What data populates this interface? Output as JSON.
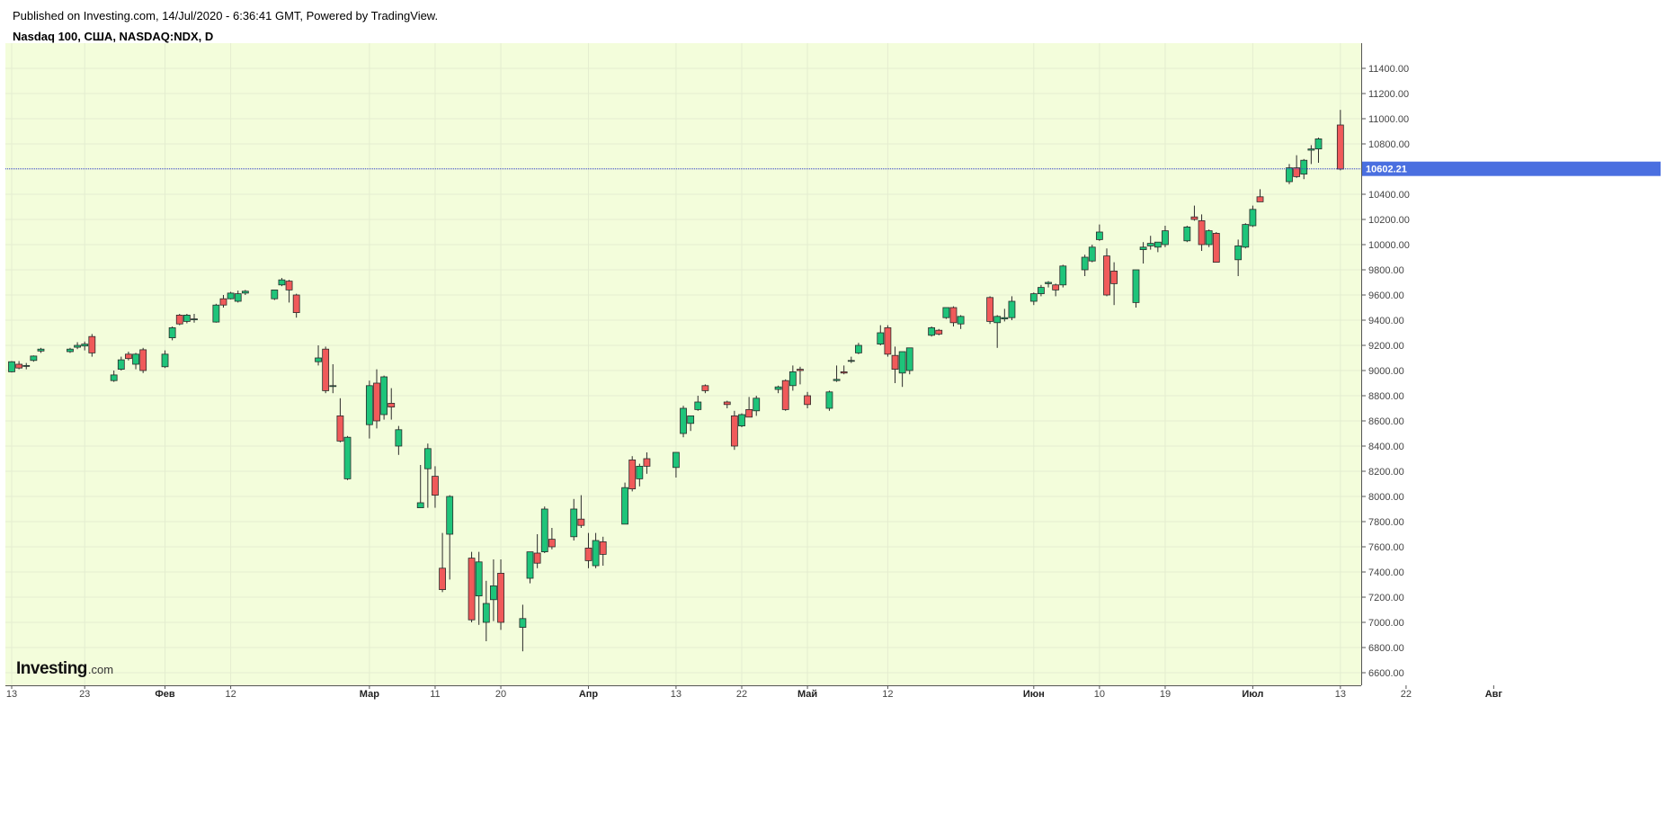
{
  "header": {
    "published": "Published on Investing.com, 14/Jul/2020 - 6:36:41 GMT, Powered by TradingView.",
    "symbol": "Nasdaq 100, США, NASDAQ:NDX, D"
  },
  "logo": {
    "main": "Investing",
    "suffix": ".com"
  },
  "colors": {
    "background": "#f3fddb",
    "grid": "#e4edd0",
    "up": "#1ec47a",
    "down": "#f05a5a",
    "wick": "#2b2b2b",
    "priceLine": "#3344cc",
    "priceLabelBg": "#4a6fe0"
  },
  "chart_data": {
    "type": "candlestick",
    "title": "Nasdaq 100, США, NASDAQ:NDX, D",
    "ylim": [
      6500,
      11600
    ],
    "y_ticks": [
      "6600.00",
      "6800.00",
      "7000.00",
      "7200.00",
      "7400.00",
      "7600.00",
      "7800.00",
      "8000.00",
      "8200.00",
      "8400.00",
      "8600.00",
      "8800.00",
      "9000.00",
      "9200.00",
      "9400.00",
      "9600.00",
      "9800.00",
      "10000.00",
      "10200.00",
      "10400.00",
      "10600.00",
      "10800.00",
      "11000.00",
      "11200.00",
      "11400.00"
    ],
    "last_price": 10602.21,
    "last_price_label": "10602.21",
    "x_labels": [
      {
        "label": "13",
        "date": "2020-01-13",
        "bold": false
      },
      {
        "label": "23",
        "date": "2020-01-23",
        "bold": false
      },
      {
        "label": "Фев",
        "date": "2020-02-03",
        "bold": true
      },
      {
        "label": "12",
        "date": "2020-02-12",
        "bold": false
      },
      {
        "label": "Мар",
        "date": "2020-03-02",
        "bold": true
      },
      {
        "label": "11",
        "date": "2020-03-11",
        "bold": false
      },
      {
        "label": "20",
        "date": "2020-03-20",
        "bold": false
      },
      {
        "label": "Апр",
        "date": "2020-04-01",
        "bold": true
      },
      {
        "label": "13",
        "date": "2020-04-13",
        "bold": false
      },
      {
        "label": "22",
        "date": "2020-04-22",
        "bold": false
      },
      {
        "label": "Май",
        "date": "2020-05-01",
        "bold": true
      },
      {
        "label": "12",
        "date": "2020-05-12",
        "bold": false
      },
      {
        "label": "Июн",
        "date": "2020-06-01",
        "bold": true
      },
      {
        "label": "10",
        "date": "2020-06-10",
        "bold": false
      },
      {
        "label": "19",
        "date": "2020-06-19",
        "bold": false
      },
      {
        "label": "Июл",
        "date": "2020-07-01",
        "bold": true
      },
      {
        "label": "13",
        "date": "2020-07-13",
        "bold": false
      },
      {
        "label": "22",
        "date": "2020-07-22",
        "bold": false
      },
      {
        "label": "Авг",
        "date": "2020-08-03",
        "bold": true
      }
    ],
    "fields": [
      "date",
      "open",
      "high",
      "low",
      "close"
    ],
    "candles": [
      [
        "2020-01-13",
        8990,
        9075,
        8985,
        9070
      ],
      [
        "2020-01-14",
        9050,
        9075,
        9010,
        9020
      ],
      [
        "2020-01-15",
        9040,
        9060,
        9010,
        9040
      ],
      [
        "2020-01-16",
        9080,
        9120,
        9070,
        9115
      ],
      [
        "2020-01-17",
        9155,
        9180,
        9140,
        9170
      ],
      [
        "2020-01-21",
        9150,
        9180,
        9140,
        9170
      ],
      [
        "2020-01-22",
        9185,
        9225,
        9170,
        9200
      ],
      [
        "2020-01-23",
        9195,
        9230,
        9160,
        9210
      ],
      [
        "2020-01-24",
        9270,
        9290,
        9110,
        9140
      ],
      [
        "2020-01-27",
        8920,
        9000,
        8910,
        8965
      ],
      [
        "2020-01-28",
        9010,
        9110,
        9000,
        9085
      ],
      [
        "2020-01-29",
        9130,
        9150,
        9080,
        9095
      ],
      [
        "2020-01-30",
        9050,
        9140,
        9010,
        9130
      ],
      [
        "2020-01-31",
        9165,
        9180,
        8980,
        9000
      ],
      [
        "2020-02-03",
        9030,
        9160,
        9020,
        9130
      ],
      [
        "2020-02-04",
        9260,
        9350,
        9240,
        9340
      ],
      [
        "2020-02-05",
        9440,
        9450,
        9360,
        9370
      ],
      [
        "2020-02-06",
        9390,
        9450,
        9375,
        9440
      ],
      [
        "2020-02-07",
        9405,
        9450,
        9380,
        9410
      ],
      [
        "2020-02-10",
        9385,
        9530,
        9380,
        9520
      ],
      [
        "2020-02-11",
        9570,
        9600,
        9500,
        9520
      ],
      [
        "2020-02-12",
        9570,
        9625,
        9565,
        9615
      ],
      [
        "2020-02-13",
        9550,
        9635,
        9540,
        9610
      ],
      [
        "2020-02-14",
        9615,
        9640,
        9600,
        9630
      ],
      [
        "2020-02-18",
        9570,
        9640,
        9560,
        9640
      ],
      [
        "2020-02-19",
        9680,
        9735,
        9670,
        9720
      ],
      [
        "2020-02-20",
        9710,
        9720,
        9540,
        9640
      ],
      [
        "2020-02-21",
        9600,
        9610,
        9420,
        9460
      ],
      [
        "2020-02-24",
        9070,
        9200,
        9040,
        9100
      ],
      [
        "2020-02-25",
        9170,
        9190,
        8820,
        8840
      ],
      [
        "2020-02-26",
        8880,
        9050,
        8820,
        8880
      ],
      [
        "2020-02-27",
        8640,
        8780,
        8430,
        8440
      ],
      [
        "2020-02-28",
        8140,
        8480,
        8130,
        8470
      ],
      [
        "2020-03-02",
        8570,
        8920,
        8460,
        8880
      ],
      [
        "2020-03-03",
        8900,
        9010,
        8540,
        8600
      ],
      [
        "2020-03-04",
        8650,
        8960,
        8610,
        8950
      ],
      [
        "2020-03-05",
        8740,
        8860,
        8610,
        8710
      ],
      [
        "2020-03-06",
        8400,
        8560,
        8330,
        8530
      ],
      [
        "2020-03-09",
        7910,
        8250,
        7910,
        7950
      ],
      [
        "2020-03-10",
        8220,
        8420,
        7910,
        8380
      ],
      [
        "2020-03-11",
        8160,
        8240,
        7910,
        8010
      ],
      [
        "2020-03-12",
        7430,
        7710,
        7240,
        7260
      ],
      [
        "2020-03-13",
        7700,
        8010,
        7340,
        8000
      ],
      [
        "2020-03-16",
        7510,
        7560,
        7000,
        7020
      ],
      [
        "2020-03-17",
        7210,
        7560,
        6980,
        7480
      ],
      [
        "2020-03-18",
        7000,
        7330,
        6850,
        7150
      ],
      [
        "2020-03-19",
        7180,
        7500,
        7010,
        7290
      ],
      [
        "2020-03-20",
        7390,
        7500,
        6940,
        7000
      ],
      [
        "2020-03-23",
        6960,
        7140,
        6770,
        7030
      ],
      [
        "2020-03-24",
        7350,
        7560,
        7310,
        7560
      ],
      [
        "2020-03-25",
        7550,
        7700,
        7430,
        7470
      ],
      [
        "2020-03-26",
        7560,
        7920,
        7550,
        7900
      ],
      [
        "2020-03-27",
        7660,
        7750,
        7580,
        7600
      ],
      [
        "2020-03-30",
        7680,
        7980,
        7650,
        7900
      ],
      [
        "2020-03-31",
        7820,
        8010,
        7750,
        7770
      ],
      [
        "2020-04-01",
        7590,
        7710,
        7430,
        7490
      ],
      [
        "2020-04-02",
        7450,
        7710,
        7430,
        7650
      ],
      [
        "2020-04-03",
        7640,
        7680,
        7450,
        7540
      ],
      [
        "2020-04-06",
        7780,
        8110,
        7780,
        8070
      ],
      [
        "2020-04-07",
        8290,
        8320,
        8040,
        8060
      ],
      [
        "2020-04-08",
        8140,
        8260,
        8080,
        8240
      ],
      [
        "2020-04-09",
        8300,
        8350,
        8180,
        8240
      ],
      [
        "2020-04-13",
        8230,
        8350,
        8150,
        8350
      ],
      [
        "2020-04-14",
        8500,
        8720,
        8470,
        8700
      ],
      [
        "2020-04-15",
        8580,
        8620,
        8520,
        8640
      ],
      [
        "2020-04-16",
        8690,
        8800,
        8680,
        8750
      ],
      [
        "2020-04-17",
        8880,
        8890,
        8820,
        8840
      ],
      [
        "2020-04-20",
        8750,
        8760,
        8700,
        8730
      ],
      [
        "2020-04-21",
        8640,
        8680,
        8370,
        8400
      ],
      [
        "2020-04-22",
        8560,
        8660,
        8550,
        8650
      ],
      [
        "2020-04-23",
        8690,
        8790,
        8650,
        8630
      ],
      [
        "2020-04-24",
        8680,
        8800,
        8640,
        8780
      ],
      [
        "2020-04-27",
        8850,
        8880,
        8820,
        8870
      ],
      [
        "2020-04-28",
        8920,
        8930,
        8680,
        8690
      ],
      [
        "2020-04-29",
        8880,
        9040,
        8840,
        8990
      ],
      [
        "2020-04-30",
        9010,
        9030,
        8890,
        9000
      ],
      [
        "2020-05-01",
        8800,
        8830,
        8700,
        8730
      ],
      [
        "2020-05-04",
        8700,
        8840,
        8680,
        8830
      ],
      [
        "2020-05-05",
        8920,
        9040,
        8910,
        8930
      ],
      [
        "2020-05-06",
        8990,
        9040,
        8970,
        8980
      ],
      [
        "2020-05-07",
        9080,
        9110,
        9060,
        9080
      ],
      [
        "2020-05-08",
        9140,
        9220,
        9130,
        9200
      ],
      [
        "2020-05-11",
        9210,
        9360,
        9200,
        9300
      ],
      [
        "2020-05-12",
        9340,
        9360,
        9110,
        9130
      ],
      [
        "2020-05-13",
        9120,
        9190,
        8900,
        9010
      ],
      [
        "2020-05-14",
        8980,
        9150,
        8870,
        9150
      ],
      [
        "2020-05-15",
        9000,
        9180,
        8970,
        9180
      ],
      [
        "2020-05-18",
        9280,
        9350,
        9270,
        9340
      ],
      [
        "2020-05-19",
        9320,
        9330,
        9280,
        9290
      ],
      [
        "2020-05-20",
        9420,
        9490,
        9410,
        9500
      ],
      [
        "2020-05-21",
        9500,
        9510,
        9350,
        9380
      ],
      [
        "2020-05-22",
        9370,
        9440,
        9330,
        9430
      ],
      [
        "2020-05-26",
        9580,
        9590,
        9370,
        9390
      ],
      [
        "2020-05-27",
        9380,
        9440,
        9180,
        9430
      ],
      [
        "2020-05-28",
        9410,
        9490,
        9390,
        9420
      ],
      [
        "2020-05-29",
        9420,
        9590,
        9400,
        9550
      ],
      [
        "2020-06-01",
        9550,
        9620,
        9520,
        9610
      ],
      [
        "2020-06-02",
        9610,
        9680,
        9590,
        9660
      ],
      [
        "2020-06-03",
        9690,
        9710,
        9660,
        9700
      ],
      [
        "2020-06-04",
        9680,
        9690,
        9590,
        9640
      ],
      [
        "2020-06-05",
        9680,
        9840,
        9660,
        9830
      ],
      [
        "2020-06-08",
        9800,
        9920,
        9750,
        9900
      ],
      [
        "2020-06-09",
        9870,
        10000,
        9860,
        9980
      ],
      [
        "2020-06-10",
        10040,
        10160,
        10030,
        10100
      ],
      [
        "2020-06-11",
        9910,
        9970,
        9590,
        9600
      ],
      [
        "2020-06-12",
        9790,
        9860,
        9520,
        9690
      ],
      [
        "2020-06-15",
        9540,
        9800,
        9500,
        9800
      ],
      [
        "2020-06-16",
        9960,
        10020,
        9850,
        9980
      ],
      [
        "2020-06-17",
        9990,
        10070,
        9960,
        10010
      ],
      [
        "2020-06-18",
        9980,
        10020,
        9940,
        10020
      ],
      [
        "2020-06-19",
        10000,
        10150,
        9980,
        10110
      ],
      [
        "2020-06-22",
        10030,
        10150,
        10020,
        10140
      ],
      [
        "2020-06-23",
        10220,
        10310,
        10190,
        10200
      ],
      [
        "2020-06-24",
        10190,
        10240,
        9950,
        10000
      ],
      [
        "2020-06-25",
        10000,
        10120,
        9980,
        10110
      ],
      [
        "2020-06-26",
        10090,
        10100,
        9860,
        9860
      ],
      [
        "2020-06-29",
        9880,
        10040,
        9750,
        9990
      ],
      [
        "2020-06-30",
        9980,
        10170,
        9970,
        10160
      ],
      [
        "2020-07-01",
        10150,
        10310,
        10140,
        10280
      ],
      [
        "2020-07-02",
        10380,
        10440,
        10360,
        10340
      ],
      [
        "2020-07-06",
        10500,
        10640,
        10480,
        10610
      ],
      [
        "2020-07-07",
        10610,
        10710,
        10530,
        10540
      ],
      [
        "2020-07-08",
        10560,
        10680,
        10520,
        10670
      ],
      [
        "2020-07-09",
        10750,
        10790,
        10640,
        10760
      ],
      [
        "2020-07-10",
        10760,
        10850,
        10650,
        10840
      ],
      [
        "2020-07-13",
        10950,
        11070,
        10590,
        10600
      ]
    ]
  }
}
